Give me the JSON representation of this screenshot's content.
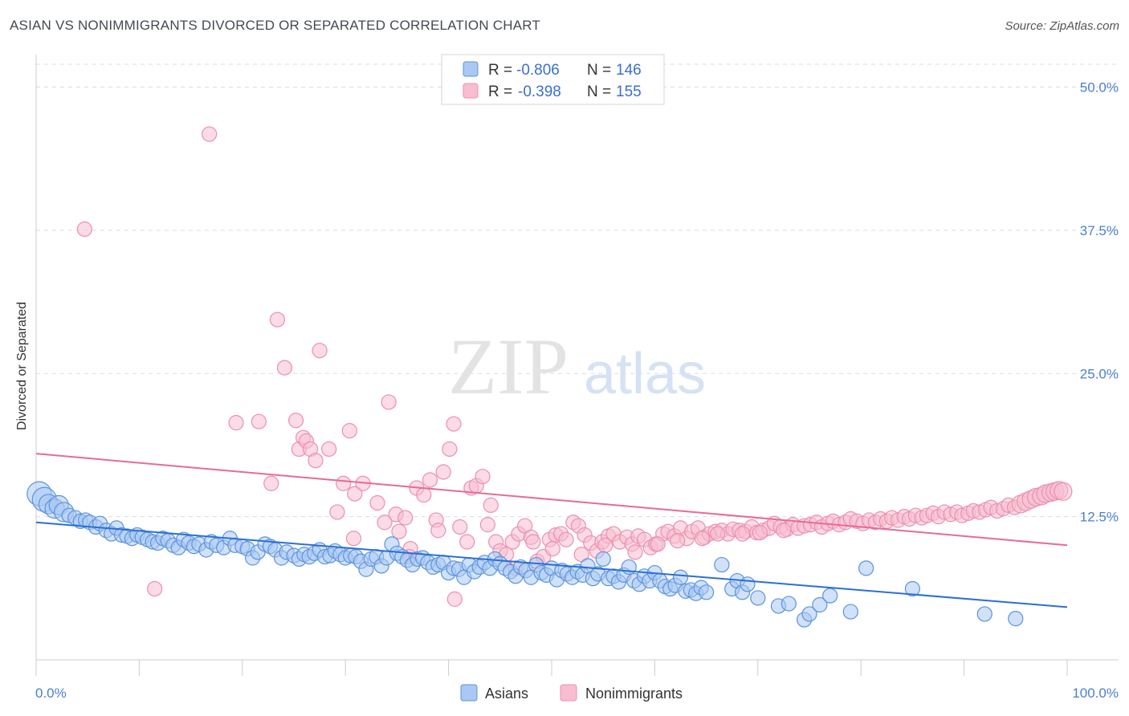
{
  "title": "ASIAN VS NONIMMIGRANTS DIVORCED OR SEPARATED CORRELATION CHART",
  "source": "Source: ZipAtlas.com",
  "watermark": {
    "zip": "ZIP",
    "atlas": "atlas"
  },
  "legend_top": [
    {
      "r_label": "R =",
      "r_value": "-0.806",
      "n_label": "N =",
      "n_value": "146"
    },
    {
      "r_label": "R =",
      "r_value": "-0.398",
      "n_label": "N =",
      "n_value": "155"
    }
  ],
  "colors": {
    "asians_fill": "#a9c8f3",
    "asians_stroke": "#5b93de",
    "asians_line": "#2a6fd6",
    "nonimm_fill": "#f7bdd0",
    "nonimm_stroke": "#ec8fae",
    "nonimm_line": "#e8699a",
    "tick_blue": "#4a7fd0",
    "grid": "#dddddd"
  },
  "chart_data": {
    "type": "scatter",
    "title": "ASIAN VS NONIMMIGRANTS DIVORCED OR SEPARATED CORRELATION CHART",
    "ylabel": "Divorced or Separated",
    "xlabel": "",
    "xlim": [
      0,
      100
    ],
    "ylim": [
      0,
      52
    ],
    "x_tick_labels": [
      "0.0%",
      "100.0%"
    ],
    "y_ticks": [
      12.5,
      25.0,
      37.5,
      50.0
    ],
    "y_tick_labels": [
      "12.5%",
      "25.0%",
      "37.5%",
      "50.0%"
    ],
    "grid": true,
    "legend_placement": "bottom",
    "series": [
      {
        "name": "Asians",
        "r": -0.806,
        "n": 146,
        "trend": {
          "x": [
            0,
            100
          ],
          "y": [
            12.0,
            4.6
          ]
        },
        "points": [
          [
            0.3,
            14.5
          ],
          [
            0.8,
            14.0
          ],
          [
            1.2,
            13.6
          ],
          [
            1.8,
            13.2
          ],
          [
            2.2,
            13.5
          ],
          [
            2.7,
            12.9
          ],
          [
            3.2,
            12.6
          ],
          [
            3.8,
            12.4
          ],
          [
            4.3,
            12.1
          ],
          [
            4.8,
            12.2
          ],
          [
            5.2,
            12.0
          ],
          [
            5.8,
            11.6
          ],
          [
            6.2,
            11.9
          ],
          [
            6.8,
            11.3
          ],
          [
            7.3,
            11.0
          ],
          [
            7.8,
            11.5
          ],
          [
            8.3,
            10.9
          ],
          [
            8.8,
            10.8
          ],
          [
            9.3,
            10.6
          ],
          [
            9.8,
            10.9
          ],
          [
            10.3,
            10.7
          ],
          [
            10.8,
            10.5
          ],
          [
            11.3,
            10.3
          ],
          [
            11.8,
            10.2
          ],
          [
            12.3,
            10.6
          ],
          [
            12.8,
            10.4
          ],
          [
            13.3,
            10.0
          ],
          [
            13.8,
            9.8
          ],
          [
            14.3,
            10.5
          ],
          [
            14.8,
            10.2
          ],
          [
            15.3,
            9.9
          ],
          [
            15.8,
            10.1
          ],
          [
            16.5,
            9.6
          ],
          [
            17.0,
            10.3
          ],
          [
            17.5,
            10.0
          ],
          [
            18.2,
            9.8
          ],
          [
            18.8,
            10.6
          ],
          [
            19.3,
            10.0
          ],
          [
            20.0,
            9.9
          ],
          [
            20.5,
            9.7
          ],
          [
            21.0,
            8.9
          ],
          [
            21.5,
            9.4
          ],
          [
            22.2,
            10.1
          ],
          [
            22.7,
            9.9
          ],
          [
            23.2,
            9.6
          ],
          [
            23.8,
            8.9
          ],
          [
            24.3,
            9.4
          ],
          [
            25.0,
            9.1
          ],
          [
            25.5,
            8.8
          ],
          [
            26.0,
            9.2
          ],
          [
            26.5,
            9.0
          ],
          [
            27.0,
            9.3
          ],
          [
            27.5,
            9.6
          ],
          [
            28.0,
            9.0
          ],
          [
            28.5,
            9.1
          ],
          [
            29.0,
            9.5
          ],
          [
            29.5,
            9.2
          ],
          [
            30.0,
            8.9
          ],
          [
            30.5,
            9.1
          ],
          [
            31.0,
            9.0
          ],
          [
            31.5,
            8.6
          ],
          [
            32.0,
            7.9
          ],
          [
            32.5,
            8.8
          ],
          [
            33.0,
            9.0
          ],
          [
            33.5,
            8.2
          ],
          [
            34.0,
            8.9
          ],
          [
            34.5,
            10.1
          ],
          [
            35.0,
            9.3
          ],
          [
            35.5,
            9.0
          ],
          [
            36.0,
            8.7
          ],
          [
            36.5,
            8.3
          ],
          [
            37.0,
            8.8
          ],
          [
            37.5,
            8.9
          ],
          [
            38.0,
            8.5
          ],
          [
            38.5,
            8.1
          ],
          [
            39.0,
            8.3
          ],
          [
            39.5,
            8.5
          ],
          [
            40.0,
            7.6
          ],
          [
            40.5,
            8.0
          ],
          [
            41.0,
            7.9
          ],
          [
            41.5,
            7.2
          ],
          [
            42.0,
            8.3
          ],
          [
            42.5,
            7.7
          ],
          [
            43.0,
            8.1
          ],
          [
            43.5,
            8.5
          ],
          [
            44.0,
            8.0
          ],
          [
            44.5,
            8.8
          ],
          [
            45.0,
            8.4
          ],
          [
            45.5,
            8.0
          ],
          [
            46.0,
            7.7
          ],
          [
            46.5,
            7.3
          ],
          [
            47.0,
            8.1
          ],
          [
            47.5,
            7.8
          ],
          [
            48.0,
            7.2
          ],
          [
            48.5,
            8.3
          ],
          [
            49.0,
            7.6
          ],
          [
            49.5,
            7.4
          ],
          [
            50.0,
            8.0
          ],
          [
            50.5,
            7.0
          ],
          [
            51.0,
            7.8
          ],
          [
            51.5,
            7.5
          ],
          [
            52.0,
            7.2
          ],
          [
            52.5,
            7.7
          ],
          [
            53.0,
            7.4
          ],
          [
            53.5,
            8.2
          ],
          [
            54.0,
            7.1
          ],
          [
            54.5,
            7.5
          ],
          [
            55.0,
            8.8
          ],
          [
            55.5,
            7.1
          ],
          [
            56.0,
            7.3
          ],
          [
            56.5,
            6.8
          ],
          [
            57.0,
            7.4
          ],
          [
            57.5,
            8.1
          ],
          [
            58.0,
            6.9
          ],
          [
            58.5,
            6.6
          ],
          [
            59.0,
            7.3
          ],
          [
            59.5,
            6.9
          ],
          [
            60.0,
            7.6
          ],
          [
            60.5,
            6.9
          ],
          [
            61.0,
            6.4
          ],
          [
            61.5,
            6.2
          ],
          [
            62.0,
            6.5
          ],
          [
            62.5,
            7.2
          ],
          [
            63.0,
            6.0
          ],
          [
            63.5,
            6.1
          ],
          [
            64.0,
            5.8
          ],
          [
            64.5,
            6.3
          ],
          [
            65.0,
            5.9
          ],
          [
            66.5,
            8.3
          ],
          [
            67.5,
            6.2
          ],
          [
            68.0,
            6.9
          ],
          [
            68.5,
            5.9
          ],
          [
            69.0,
            6.6
          ],
          [
            70.0,
            5.4
          ],
          [
            72.0,
            4.7
          ],
          [
            73.0,
            4.9
          ],
          [
            74.5,
            3.5
          ],
          [
            75.0,
            4.0
          ],
          [
            76.0,
            4.8
          ],
          [
            77.0,
            5.6
          ],
          [
            79.0,
            4.2
          ],
          [
            80.5,
            8.0
          ],
          [
            85.0,
            6.2
          ],
          [
            92.0,
            4.0
          ],
          [
            95.0,
            3.6
          ]
        ]
      },
      {
        "name": "Nonimmigrants",
        "r": -0.398,
        "n": 155,
        "trend": {
          "x": [
            0,
            100
          ],
          "y": [
            18.0,
            10.0
          ]
        },
        "points": [
          [
            4.7,
            37.6
          ],
          [
            11.5,
            6.2
          ],
          [
            16.8,
            45.9
          ],
          [
            19.4,
            20.7
          ],
          [
            21.6,
            20.8
          ],
          [
            22.8,
            15.4
          ],
          [
            23.4,
            29.7
          ],
          [
            24.1,
            25.5
          ],
          [
            25.2,
            20.9
          ],
          [
            25.5,
            18.4
          ],
          [
            25.9,
            19.4
          ],
          [
            26.2,
            19.1
          ],
          [
            26.6,
            18.4
          ],
          [
            27.1,
            17.4
          ],
          [
            27.5,
            27.0
          ],
          [
            28.4,
            18.4
          ],
          [
            29.2,
            12.9
          ],
          [
            29.8,
            15.4
          ],
          [
            30.4,
            20.0
          ],
          [
            30.9,
            14.5
          ],
          [
            31.7,
            15.4
          ],
          [
            33.1,
            13.7
          ],
          [
            34.2,
            22.5
          ],
          [
            34.9,
            12.7
          ],
          [
            35.2,
            11.2
          ],
          [
            35.8,
            12.4
          ],
          [
            36.3,
            9.7
          ],
          [
            36.9,
            15.0
          ],
          [
            37.6,
            14.4
          ],
          [
            38.2,
            15.7
          ],
          [
            38.8,
            12.2
          ],
          [
            39.5,
            16.4
          ],
          [
            40.1,
            18.4
          ],
          [
            40.5,
            20.6
          ],
          [
            41.1,
            11.6
          ],
          [
            41.8,
            10.3
          ],
          [
            42.2,
            15.0
          ],
          [
            42.7,
            15.2
          ],
          [
            43.3,
            16.0
          ],
          [
            44.1,
            13.5
          ],
          [
            44.6,
            10.3
          ],
          [
            45.0,
            9.5
          ],
          [
            45.6,
            9.2
          ],
          [
            46.2,
            10.3
          ],
          [
            46.8,
            11.0
          ],
          [
            47.4,
            11.7
          ],
          [
            48.0,
            10.7
          ],
          [
            48.6,
            8.6
          ],
          [
            49.2,
            9.0
          ],
          [
            49.8,
            10.5
          ],
          [
            50.4,
            10.9
          ],
          [
            50.9,
            11.0
          ],
          [
            51.4,
            10.5
          ],
          [
            52.1,
            12.0
          ],
          [
            52.6,
            11.7
          ],
          [
            53.2,
            10.9
          ],
          [
            53.8,
            10.2
          ],
          [
            54.4,
            9.5
          ],
          [
            54.9,
            10.3
          ],
          [
            55.5,
            10.8
          ],
          [
            56.0,
            11.0
          ],
          [
            56.6,
            10.3
          ],
          [
            57.3,
            10.7
          ],
          [
            57.8,
            10.1
          ],
          [
            58.4,
            10.8
          ],
          [
            59.0,
            10.5
          ],
          [
            59.6,
            9.8
          ],
          [
            60.1,
            10.1
          ],
          [
            60.8,
            11.0
          ],
          [
            61.3,
            11.2
          ],
          [
            61.9,
            10.8
          ],
          [
            62.5,
            11.5
          ],
          [
            63.1,
            10.6
          ],
          [
            63.6,
            11.2
          ],
          [
            64.2,
            11.5
          ],
          [
            64.8,
            10.7
          ],
          [
            65.3,
            11.0
          ],
          [
            65.9,
            11.2
          ],
          [
            66.5,
            11.3
          ],
          [
            67.1,
            11.0
          ],
          [
            67.6,
            11.4
          ],
          [
            68.2,
            11.3
          ],
          [
            68.8,
            11.2
          ],
          [
            69.4,
            11.6
          ],
          [
            69.9,
            11.1
          ],
          [
            70.5,
            11.3
          ],
          [
            71.1,
            11.5
          ],
          [
            71.6,
            11.9
          ],
          [
            72.2,
            11.6
          ],
          [
            72.8,
            11.4
          ],
          [
            73.4,
            11.8
          ],
          [
            73.9,
            11.5
          ],
          [
            74.5,
            11.7
          ],
          [
            75.1,
            11.8
          ],
          [
            75.7,
            12.0
          ],
          [
            76.2,
            11.6
          ],
          [
            76.8,
            11.9
          ],
          [
            77.3,
            12.1
          ],
          [
            77.9,
            11.8
          ],
          [
            78.5,
            12.0
          ],
          [
            79.0,
            12.3
          ],
          [
            79.6,
            12.1
          ],
          [
            80.2,
            11.9
          ],
          [
            80.8,
            12.2
          ],
          [
            81.4,
            12.0
          ],
          [
            81.9,
            12.3
          ],
          [
            82.5,
            12.1
          ],
          [
            83.0,
            12.4
          ],
          [
            83.6,
            12.2
          ],
          [
            84.2,
            12.5
          ],
          [
            84.7,
            12.3
          ],
          [
            85.3,
            12.6
          ],
          [
            85.9,
            12.4
          ],
          [
            86.4,
            12.6
          ],
          [
            87.0,
            12.8
          ],
          [
            87.5,
            12.5
          ],
          [
            88.1,
            12.9
          ],
          [
            88.7,
            12.7
          ],
          [
            89.3,
            12.9
          ],
          [
            89.8,
            12.6
          ],
          [
            90.4,
            12.8
          ],
          [
            90.9,
            13.0
          ],
          [
            91.5,
            12.9
          ],
          [
            92.1,
            13.1
          ],
          [
            92.6,
            13.3
          ],
          [
            93.2,
            13.0
          ],
          [
            93.8,
            13.2
          ],
          [
            94.3,
            13.5
          ],
          [
            94.9,
            13.3
          ],
          [
            95.5,
            13.6
          ],
          [
            96.0,
            13.8
          ],
          [
            96.5,
            14.0
          ],
          [
            97.0,
            14.2
          ],
          [
            97.5,
            14.3
          ],
          [
            97.9,
            14.5
          ],
          [
            98.4,
            14.6
          ],
          [
            98.8,
            14.7
          ],
          [
            99.2,
            14.8
          ],
          [
            99.6,
            14.7
          ],
          [
            30.8,
            10.6
          ],
          [
            33.8,
            12.0
          ],
          [
            36.2,
            9.0
          ],
          [
            39.0,
            11.3
          ],
          [
            40.6,
            5.3
          ],
          [
            43.8,
            11.8
          ],
          [
            46.5,
            8.0
          ],
          [
            48.2,
            10.3
          ],
          [
            50.1,
            9.7
          ],
          [
            52.9,
            9.2
          ],
          [
            55.2,
            10.0
          ],
          [
            58.1,
            9.4
          ],
          [
            60.3,
            10.1
          ],
          [
            62.2,
            10.4
          ],
          [
            64.6,
            10.6
          ],
          [
            66.1,
            11.0
          ],
          [
            68.5,
            11.0
          ],
          [
            70.2,
            11.1
          ],
          [
            72.5,
            11.3
          ]
        ]
      }
    ]
  },
  "bottom_legend": [
    "Asians",
    "Nonimmigrants"
  ]
}
